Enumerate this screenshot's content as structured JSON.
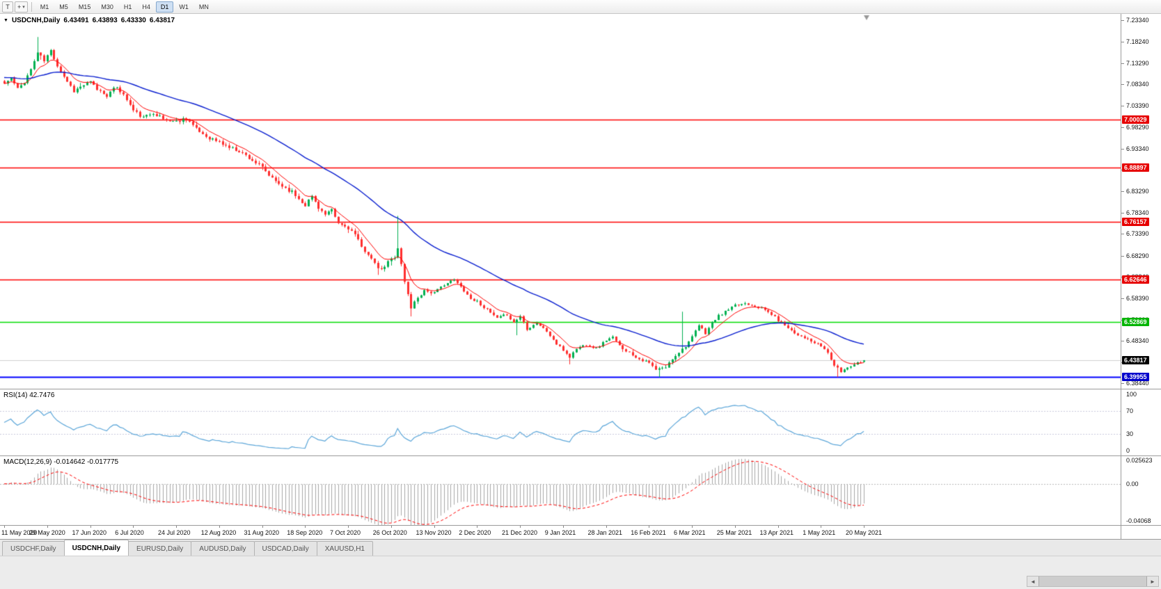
{
  "toolbar": {
    "buttons": [
      {
        "name": "chart-template-button",
        "glyph": "T"
      },
      {
        "name": "cursor-tool-button",
        "glyph": "+"
      }
    ],
    "dropdown_caret": "▾",
    "timeframes": [
      "M1",
      "M5",
      "M15",
      "M30",
      "H1",
      "H4",
      "D1",
      "W1",
      "MN"
    ],
    "active_timeframe": "D1"
  },
  "icons": {
    "collapse_triangle": "▼",
    "scroll_left": "◄",
    "scroll_right": "►"
  },
  "chart": {
    "title": {
      "symbol": "USDCNH,Daily",
      "open": "6.43491",
      "high": "6.43893",
      "low": "6.43330",
      "close": "6.43817"
    },
    "price_axis": {
      "min": 6.372,
      "max": 7.248,
      "ticks": [
        "7.23340",
        "7.18240",
        "7.13290",
        "7.08340",
        "7.03390",
        "6.98290",
        "6.93340",
        "6.88340",
        "6.83290",
        "6.78340",
        "6.73390",
        "6.68290",
        "6.63340",
        "6.58390",
        "6.53290",
        "6.48340",
        "6.43390",
        "6.38440"
      ]
    },
    "levels": [
      {
        "price": 7.00029,
        "label": "7.00029",
        "color": "#ff0000",
        "tag": "#e60000",
        "width": 1.4
      },
      {
        "price": 6.88897,
        "label": "6.88897",
        "color": "#ff0000",
        "tag": "#e60000",
        "width": 1.4
      },
      {
        "price": 6.76157,
        "label": "6.76157",
        "color": "#ff0000",
        "tag": "#e60000",
        "width": 1.4
      },
      {
        "price": 6.62646,
        "label": "6.62646",
        "color": "#ff0000",
        "tag": "#e60000",
        "width": 1.4
      },
      {
        "price": 6.52869,
        "label": "6.52869",
        "color": "#00dd00",
        "tag": "#00b400",
        "width": 1.6
      },
      {
        "price": 6.39955,
        "label": "6.39955",
        "color": "#0000ff",
        "tag": "#0000cc",
        "width": 2
      }
    ],
    "current_price": {
      "value": "6.43817",
      "price": 6.43817,
      "tag": "#000000"
    },
    "colors": {
      "up": "#00b050",
      "down": "#ff2e2e",
      "ma_fast": "#ff0000",
      "ma_slow": "#0a1fd0",
      "rsi_line": "#5ba6d9",
      "grid_dotted": "#c9c9dc",
      "macd_hist": "#a6a6a6",
      "macd_signal": "#ff0000",
      "current_line": "#cfcfcf",
      "shift_marker": "#999999"
    }
  },
  "rsi": {
    "label": "RSI(14) 42.7476",
    "period": 14,
    "value": 42.7476,
    "axis": [
      "100",
      "70",
      "30",
      "0"
    ],
    "levels": [
      70,
      30
    ]
  },
  "macd": {
    "label": "MACD(12,26,9) -0.014642 -0.017775",
    "params": {
      "fast": 12,
      "slow": 26,
      "signal": 9
    },
    "value": -0.014642,
    "signal_value": -0.017775,
    "axis_labels": [
      "0.025623",
      "0.00",
      "-0.04068"
    ],
    "scale_max": 0.0305,
    "scale_min": -0.0455
  },
  "dates": [
    "11 May 2020",
    "29 May 2020",
    "17 Jun 2020",
    "6 Jul 2020",
    "24 Jul 2020",
    "12 Aug 2020",
    "31 Aug 2020",
    "18 Sep 2020",
    "7 Oct 2020",
    "26 Oct 2020",
    "13 Nov 2020",
    "2 Dec 2020",
    "21 Dec 2020",
    "9 Jan 2021",
    "28 Jan 2021",
    "16 Feb 2021",
    "6 Mar 2021",
    "25 Mar 2021",
    "13 Apr 2021",
    "1 May 2021",
    "20 May 2021"
  ],
  "tabs": {
    "items": [
      {
        "label": "USDCHF,Daily"
      },
      {
        "label": "USDCNH,Daily"
      },
      {
        "label": "EURUSD,Daily"
      },
      {
        "label": "AUDUSD,Daily"
      },
      {
        "label": "USDCAD,Daily"
      },
      {
        "label": "XAUUSD,H1"
      }
    ],
    "active_index": 1
  },
  "chart_data": {
    "type": "candlestick",
    "symbol": "USDCNH",
    "timeframe": "Daily",
    "bars": 261,
    "date_label_step": 13,
    "last": {
      "open": 6.43491,
      "high": 6.43893,
      "low": 6.4333,
      "close": 6.43817
    },
    "noise": 0.0075,
    "wick": 0.005,
    "anchors": [
      [
        0,
        7.085
      ],
      [
        2,
        7.098
      ],
      [
        4,
        7.072
      ],
      [
        6,
        7.09
      ],
      [
        8,
        7.118
      ],
      [
        10,
        7.158
      ],
      [
        12,
        7.138
      ],
      [
        14,
        7.162
      ],
      [
        16,
        7.128
      ],
      [
        18,
        7.102
      ],
      [
        21,
        7.068
      ],
      [
        24,
        7.082
      ],
      [
        26,
        7.088
      ],
      [
        28,
        7.072
      ],
      [
        31,
        7.058
      ],
      [
        34,
        7.078
      ],
      [
        37,
        7.048
      ],
      [
        39,
        7.022
      ],
      [
        42,
        7.005
      ],
      [
        45,
        7.018
      ],
      [
        48,
        7.002
      ],
      [
        52,
        6.996
      ],
      [
        55,
        7.006
      ],
      [
        58,
        6.978
      ],
      [
        61,
        6.962
      ],
      [
        65,
        6.948
      ],
      [
        68,
        6.936
      ],
      [
        71,
        6.928
      ],
      [
        74,
        6.912
      ],
      [
        78,
        6.888
      ],
      [
        81,
        6.862
      ],
      [
        84,
        6.846
      ],
      [
        87,
        6.832
      ],
      [
        89,
        6.816
      ],
      [
        91,
        6.802
      ],
      [
        93,
        6.822
      ],
      [
        95,
        6.796
      ],
      [
        97,
        6.778
      ],
      [
        99,
        6.788
      ],
      [
        101,
        6.758
      ],
      [
        104,
        6.748
      ],
      [
        106,
        6.732
      ],
      [
        108,
        6.702
      ],
      [
        110,
        6.688
      ],
      [
        112,
        6.662
      ],
      [
        114,
        6.648
      ],
      [
        116,
        6.668
      ],
      [
        118,
        6.682
      ],
      [
        119,
        6.702
      ],
      [
        121,
        6.622
      ],
      [
        123,
        6.562
      ],
      [
        125,
        6.586
      ],
      [
        127,
        6.602
      ],
      [
        130,
        6.596
      ],
      [
        133,
        6.616
      ],
      [
        136,
        6.626
      ],
      [
        139,
        6.602
      ],
      [
        141,
        6.582
      ],
      [
        143,
        6.576
      ],
      [
        146,
        6.556
      ],
      [
        149,
        6.536
      ],
      [
        152,
        6.546
      ],
      [
        154,
        6.526
      ],
      [
        156,
        6.542
      ],
      [
        158,
        6.512
      ],
      [
        161,
        6.526
      ],
      [
        164,
        6.506
      ],
      [
        167,
        6.476
      ],
      [
        169,
        6.462
      ],
      [
        171,
        6.446
      ],
      [
        173,
        6.466
      ],
      [
        176,
        6.476
      ],
      [
        179,
        6.466
      ],
      [
        182,
        6.486
      ],
      [
        184,
        6.492
      ],
      [
        186,
        6.472
      ],
      [
        189,
        6.456
      ],
      [
        192,
        6.442
      ],
      [
        195,
        6.432
      ],
      [
        197,
        6.416
      ],
      [
        200,
        6.422
      ],
      [
        202,
        6.442
      ],
      [
        204,
        6.458
      ],
      [
        206,
        6.472
      ],
      [
        208,
        6.492
      ],
      [
        210,
        6.52
      ],
      [
        212,
        6.502
      ],
      [
        214,
        6.526
      ],
      [
        216,
        6.542
      ],
      [
        218,
        6.552
      ],
      [
        221,
        6.566
      ],
      [
        224,
        6.572
      ],
      [
        227,
        6.566
      ],
      [
        230,
        6.556
      ],
      [
        232,
        6.546
      ],
      [
        234,
        6.532
      ],
      [
        237,
        6.516
      ],
      [
        239,
        6.502
      ],
      [
        242,
        6.492
      ],
      [
        244,
        6.482
      ],
      [
        247,
        6.472
      ],
      [
        249,
        6.456
      ],
      [
        251,
        6.426
      ],
      [
        253,
        6.412
      ],
      [
        255,
        6.422
      ],
      [
        257,
        6.43
      ],
      [
        259,
        6.436
      ],
      [
        260,
        6.43817
      ]
    ],
    "spikes": [
      {
        "i": 10,
        "h": 7.194
      },
      {
        "i": 113,
        "l": 6.638
      },
      {
        "i": 119,
        "h": 6.776
      },
      {
        "i": 123,
        "l": 6.541
      },
      {
        "i": 155,
        "l": 6.497
      },
      {
        "i": 171,
        "l": 6.429
      },
      {
        "i": 198,
        "l": 6.399
      },
      {
        "i": 205,
        "h": 6.552
      },
      {
        "i": 252,
        "l": 6.399
      }
    ],
    "indicators": {
      "ma_fast_period": 8,
      "ma_slow_period": 45,
      "ma_slow_seed": 7.1
    }
  }
}
